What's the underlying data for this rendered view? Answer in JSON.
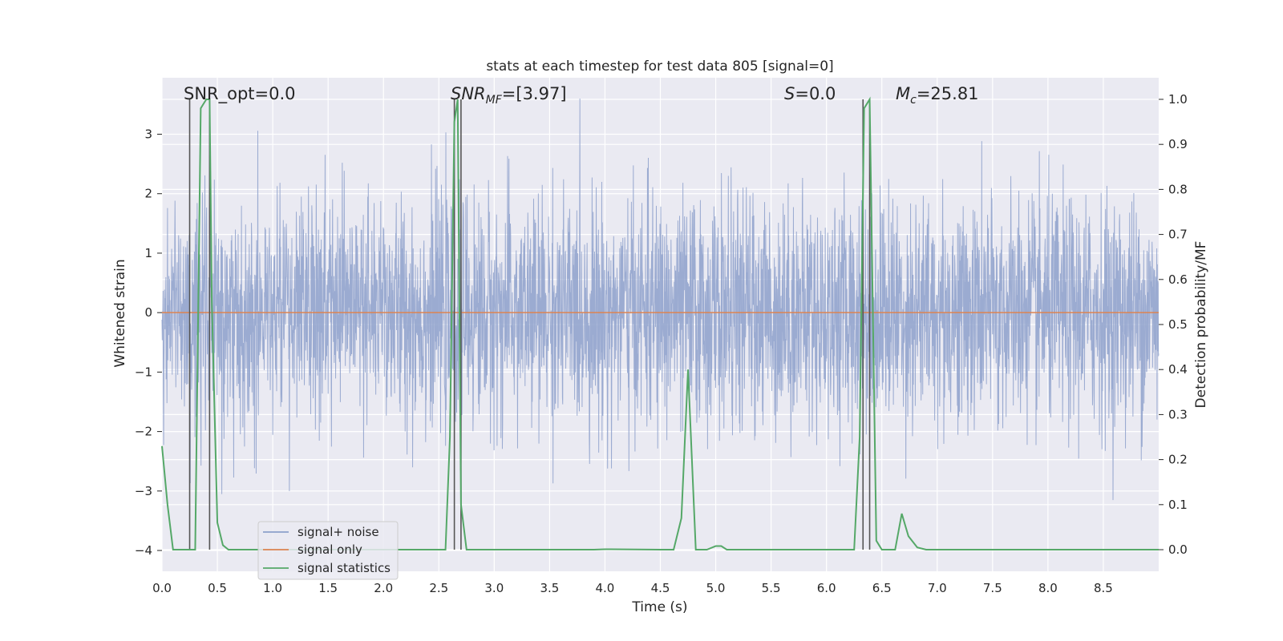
{
  "chart_data": {
    "type": "line",
    "title": "stats at each timestep for test data 805 [signal=0]",
    "xlabel": "Time (s)",
    "ylabel_left": "Whitened strain",
    "ylabel_right": "Detection probability/MF",
    "xlim": [
      0,
      9.0
    ],
    "ylim_left": [
      -4.35,
      3.95
    ],
    "ylim_right": [
      -0.048,
      1.048
    ],
    "x_ticks": [
      "0.0",
      "0.5",
      "1.0",
      "1.5",
      "2.0",
      "2.5",
      "3.0",
      "3.5",
      "4.0",
      "4.5",
      "5.0",
      "5.5",
      "6.0",
      "6.5",
      "7.0",
      "7.5",
      "8.0",
      "8.5"
    ],
    "y_left_ticks": [
      "−4",
      "−3",
      "−2",
      "−1",
      "0",
      "1",
      "2",
      "3"
    ],
    "y_right_ticks": [
      "0.0",
      "0.1",
      "0.2",
      "0.3",
      "0.4",
      "0.5",
      "0.6",
      "0.7",
      "0.8",
      "0.9",
      "1.0"
    ],
    "grid": true,
    "legend_position": "lower-left",
    "annotations": [
      {
        "id": "snr-opt",
        "parts": [
          {
            "t": "SNR_opt=0.0"
          }
        ]
      },
      {
        "id": "snr-mf",
        "parts": [
          {
            "t": "SNR",
            "i": true
          },
          {
            "t": "MF",
            "i": true,
            "sub": true
          },
          {
            "t": "=[3.97]"
          }
        ]
      },
      {
        "id": "s",
        "parts": [
          {
            "t": "S",
            "i": true
          },
          {
            "t": "=0.0"
          }
        ]
      },
      {
        "id": "mc",
        "parts": [
          {
            "t": "M",
            "i": true
          },
          {
            "t": "c",
            "i": true,
            "sub": true
          },
          {
            "t": "=25.81"
          }
        ]
      }
    ],
    "series": [
      {
        "name": "signal+ noise",
        "color": "#8da0cb",
        "style": "dense noise, whitened strain, roughly within [-3.6, 3.6]",
        "axis": "left"
      },
      {
        "name": "signal only",
        "color": "#dd8452",
        "constant": 0,
        "axis": "left"
      },
      {
        "name": "signal statistics",
        "color": "#55a868",
        "axis": "right",
        "x": [
          0.0,
          0.05,
          0.1,
          0.15,
          0.2,
          0.25,
          0.3,
          0.35,
          0.4,
          0.43,
          0.45,
          0.5,
          0.55,
          0.6,
          0.65,
          0.7,
          0.8,
          0.9,
          1.0,
          1.5,
          2.0,
          2.5,
          2.56,
          2.6,
          2.64,
          2.67,
          2.7,
          2.75,
          2.8,
          3.0,
          3.5,
          3.9,
          4.0,
          4.5,
          4.62,
          4.69,
          4.75,
          4.82,
          4.87,
          4.92,
          5.0,
          5.05,
          5.1,
          5.2,
          5.5,
          6.0,
          6.25,
          6.3,
          6.34,
          6.39,
          6.45,
          6.5,
          6.62,
          6.68,
          6.74,
          6.82,
          6.9,
          7.0,
          7.5,
          8.0,
          8.5,
          9.0
        ],
        "values": [
          0.23,
          0.1,
          0.0,
          0.0,
          0.0,
          0.0,
          0.0,
          0.98,
          1.0,
          1.0,
          0.55,
          0.06,
          0.01,
          0.0,
          0.0,
          0.0,
          0.0,
          0.0,
          0.0,
          0.0,
          0.0,
          0.0,
          0.0,
          0.25,
          0.95,
          1.0,
          0.1,
          0.0,
          0.0,
          0.0,
          0.0,
          0.0,
          0.001,
          0.0,
          0.0,
          0.07,
          0.4,
          0.0,
          0.0,
          0.0,
          0.008,
          0.008,
          0.0,
          0.0,
          0.0,
          0.0,
          0.0,
          0.25,
          0.98,
          1.0,
          0.02,
          0.0,
          0.0,
          0.08,
          0.03,
          0.005,
          0.0,
          0.0,
          0.0,
          0.0,
          0.0,
          0.0
        ]
      }
    ],
    "vlines": [
      0.25,
      0.43,
      2.64,
      2.7,
      6.33,
      6.39
    ]
  }
}
